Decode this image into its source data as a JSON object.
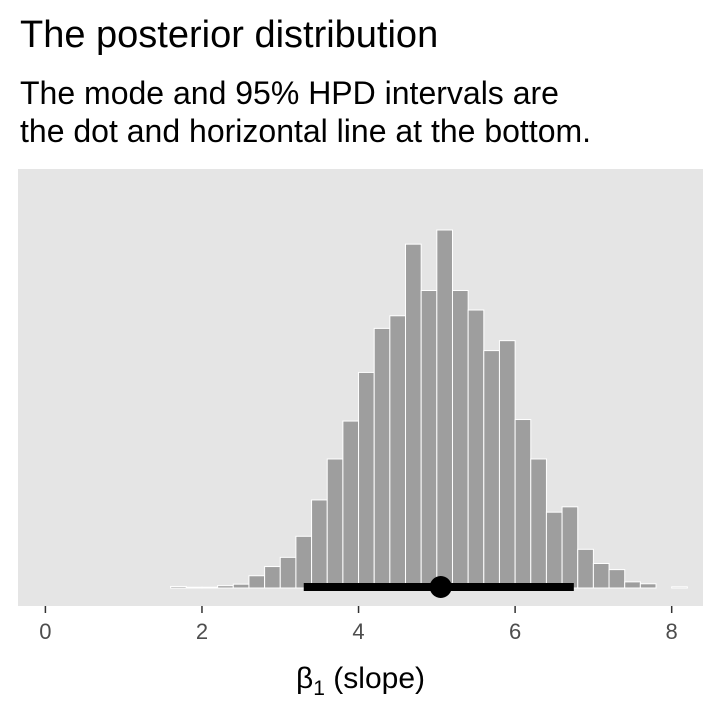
{
  "title": "The posterior distribution",
  "subtitle_lines": [
    "The mode and 95% HPD intervals are",
    "the dot and horizontal line at the bottom."
  ],
  "colors": {
    "panel": "#e5e5e5",
    "bar": "#9e9e9e",
    "bar_border": "#ffffff",
    "interval": "#000000"
  },
  "chart_data": {
    "type": "bar",
    "title": "The posterior distribution",
    "xlabel": "β₁ (slope)",
    "xlabel_parts": {
      "symbol": "β",
      "subscript": "1",
      "rest": " (slope)"
    },
    "ylabel": "",
    "xlim": [
      -0.35,
      8.4
    ],
    "ylim": [
      0,
      1
    ],
    "x_ticks": [
      0,
      2,
      4,
      6,
      8
    ],
    "x_tick_labels": [
      "0",
      "2",
      "4",
      "6",
      "8"
    ],
    "bin_width": 0.2,
    "bins": [
      {
        "x": 1.7,
        "count": 0.004
      },
      {
        "x": 1.9,
        "count": 0.002
      },
      {
        "x": 2.1,
        "count": 0.002
      },
      {
        "x": 2.3,
        "count": 0.006
      },
      {
        "x": 2.5,
        "count": 0.01
      },
      {
        "x": 2.7,
        "count": 0.032
      },
      {
        "x": 2.9,
        "count": 0.056
      },
      {
        "x": 3.1,
        "count": 0.08
      },
      {
        "x": 3.3,
        "count": 0.135
      },
      {
        "x": 3.5,
        "count": 0.23
      },
      {
        "x": 3.7,
        "count": 0.337
      },
      {
        "x": 3.9,
        "count": 0.436
      },
      {
        "x": 4.1,
        "count": 0.563
      },
      {
        "x": 4.3,
        "count": 0.678
      },
      {
        "x": 4.5,
        "count": 0.711
      },
      {
        "x": 4.7,
        "count": 0.898
      },
      {
        "x": 4.9,
        "count": 0.777
      },
      {
        "x": 5.1,
        "count": 0.935
      },
      {
        "x": 5.3,
        "count": 0.777
      },
      {
        "x": 5.5,
        "count": 0.726
      },
      {
        "x": 5.7,
        "count": 0.62
      },
      {
        "x": 5.9,
        "count": 0.646
      },
      {
        "x": 6.1,
        "count": 0.44
      },
      {
        "x": 6.3,
        "count": 0.337
      },
      {
        "x": 6.5,
        "count": 0.198
      },
      {
        "x": 6.7,
        "count": 0.212
      },
      {
        "x": 6.9,
        "count": 0.101
      },
      {
        "x": 7.1,
        "count": 0.064
      },
      {
        "x": 7.3,
        "count": 0.048
      },
      {
        "x": 7.5,
        "count": 0.016
      },
      {
        "x": 7.7,
        "count": 0.011
      },
      {
        "x": 8.1,
        "count": 0.003
      }
    ],
    "mode": 5.05,
    "hpd_interval": [
      3.3,
      6.75
    ],
    "hpd_level": 0.95,
    "y_ticks_shown": false,
    "grid": false
  }
}
